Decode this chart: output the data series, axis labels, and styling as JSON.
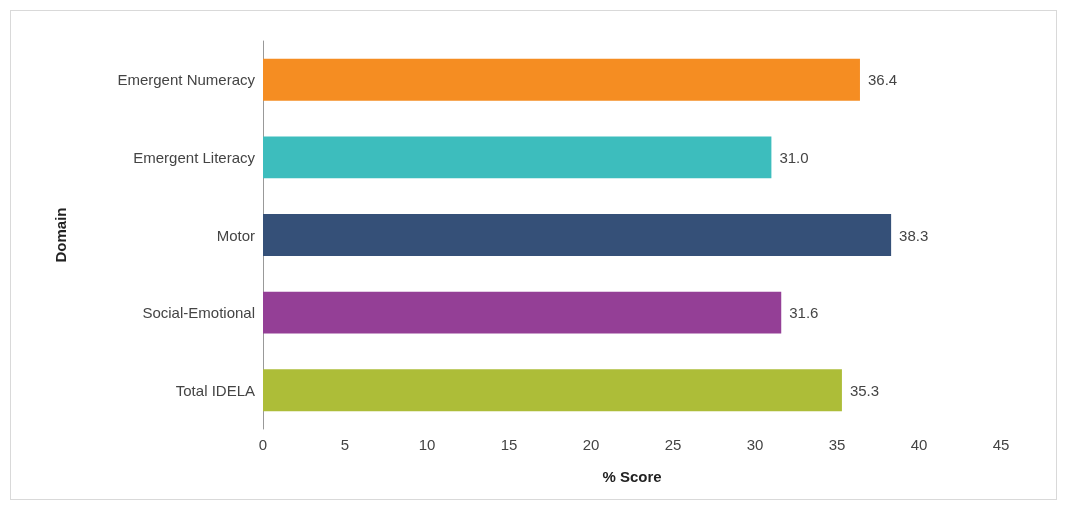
{
  "chart_data": {
    "type": "bar",
    "orientation": "horizontal",
    "xlabel": "% Score",
    "ylabel": "Domain",
    "categories": [
      "Emergent Numeracy",
      "Emergent Literacy",
      "Motor",
      "Social-Emotional",
      "Total IDELA"
    ],
    "values": [
      36.4,
      31.0,
      38.3,
      31.6,
      35.3
    ],
    "colors": [
      "#f58d22",
      "#3dbdbd",
      "#355078",
      "#943f96",
      "#adbd38"
    ],
    "value_labels": [
      "36.4",
      "31.0",
      "38.3",
      "31.6",
      "35.3"
    ],
    "xlim": [
      0,
      45
    ],
    "xticks": [
      0,
      5,
      10,
      15,
      20,
      25,
      30,
      35,
      40,
      45
    ],
    "grid": false
  }
}
